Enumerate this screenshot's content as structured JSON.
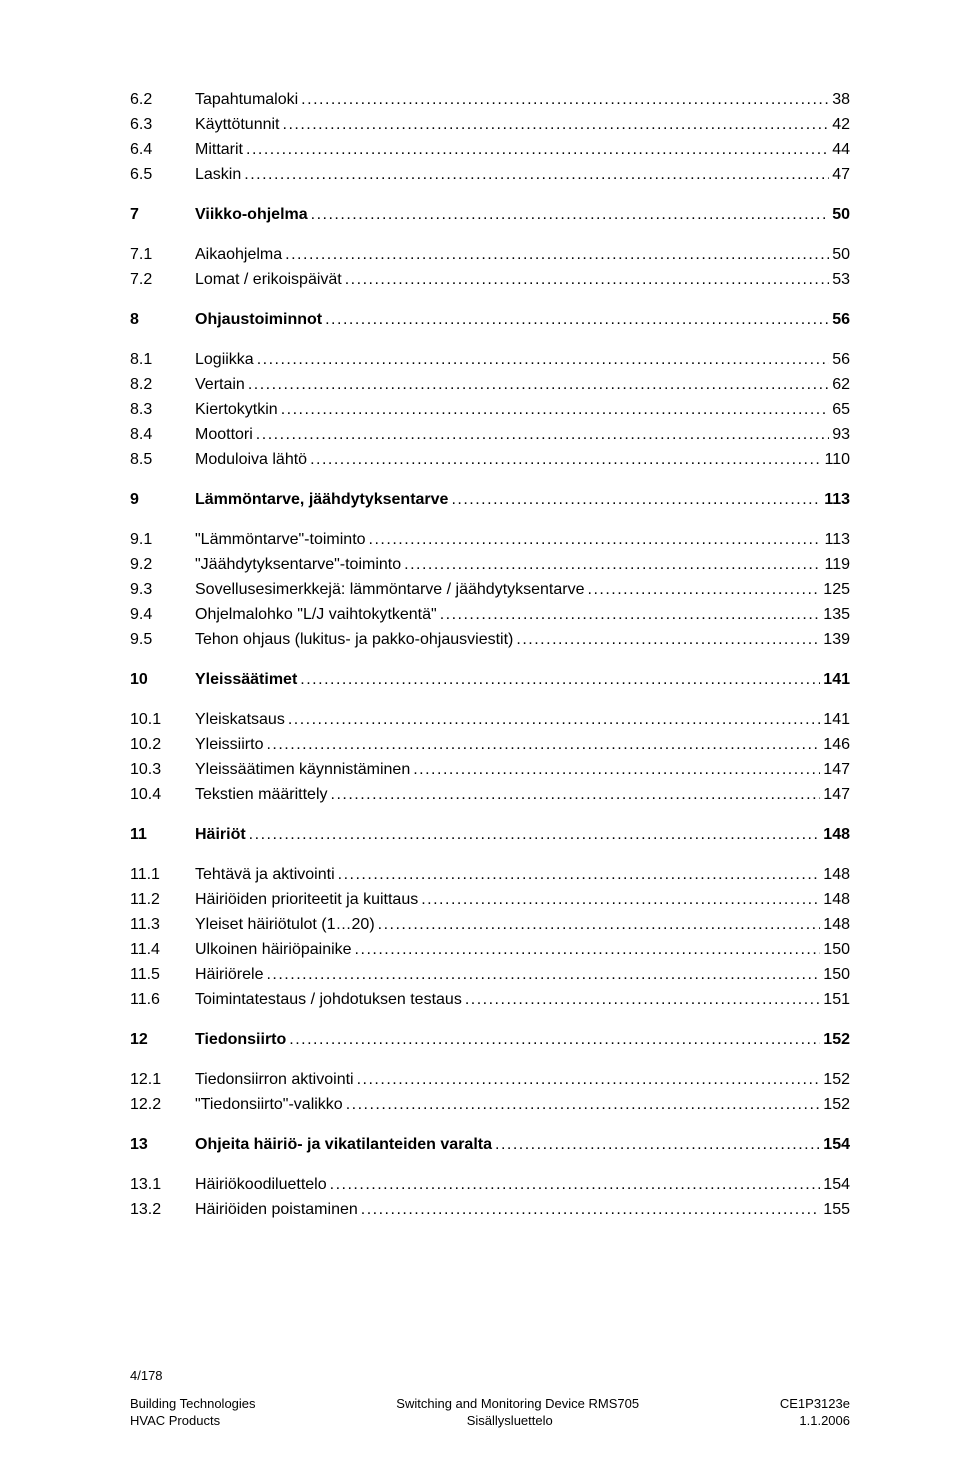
{
  "toc": [
    {
      "num": "6.2",
      "label": "Tapahtumaloki",
      "page": "38",
      "bold": false,
      "gap": false
    },
    {
      "num": "6.3",
      "label": "Käyttötunnit",
      "page": "42",
      "bold": false,
      "gap": false
    },
    {
      "num": "6.4",
      "label": "Mittarit",
      "page": "44",
      "bold": false,
      "gap": false
    },
    {
      "num": "6.5",
      "label": "Laskin",
      "page": "47",
      "bold": false,
      "gap": false
    },
    {
      "num": "7",
      "label": "Viikko-ohjelma",
      "page": "50",
      "bold": true,
      "gap": true
    },
    {
      "num": "7.1",
      "label": "Aikaohjelma",
      "page": "50",
      "bold": false,
      "gap": true
    },
    {
      "num": "7.2",
      "label": "Lomat / erikoispäivät",
      "page": "53",
      "bold": false,
      "gap": false
    },
    {
      "num": "8",
      "label": "Ohjaustoiminnot",
      "page": "56",
      "bold": true,
      "gap": true
    },
    {
      "num": "8.1",
      "label": "Logiikka",
      "page": "56",
      "bold": false,
      "gap": true
    },
    {
      "num": "8.2",
      "label": "Vertain",
      "page": "62",
      "bold": false,
      "gap": false
    },
    {
      "num": "8.3",
      "label": "Kiertokytkin",
      "page": "65",
      "bold": false,
      "gap": false
    },
    {
      "num": "8.4",
      "label": "Moottori",
      "page": "93",
      "bold": false,
      "gap": false
    },
    {
      "num": "8.5",
      "label": "Moduloiva lähtö",
      "page": "110",
      "bold": false,
      "gap": false
    },
    {
      "num": "9",
      "label": "Lämmöntarve, jäähdytyksentarve",
      "page": "113",
      "bold": true,
      "gap": true
    },
    {
      "num": "9.1",
      "label": "\"Lämmöntarve\"-toiminto",
      "page": "113",
      "bold": false,
      "gap": true
    },
    {
      "num": "9.2",
      "label": "\"Jäähdytyksentarve\"-toiminto",
      "page": "119",
      "bold": false,
      "gap": false
    },
    {
      "num": "9.3",
      "label": "Sovellusesimerkkejä: lämmöntarve / jäähdytyksentarve",
      "page": "125",
      "bold": false,
      "gap": false
    },
    {
      "num": "9.4",
      "label": "Ohjelmalohko \"L/J vaihtokytkentä\"",
      "page": "135",
      "bold": false,
      "gap": false
    },
    {
      "num": "9.5",
      "label": "Tehon ohjaus (lukitus- ja pakko-ohjausviestit)",
      "page": "139",
      "bold": false,
      "gap": false
    },
    {
      "num": "10",
      "label": "Yleissäätimet",
      "page": "141",
      "bold": true,
      "gap": true
    },
    {
      "num": "10.1",
      "label": "Yleiskatsaus",
      "page": "141",
      "bold": false,
      "gap": true
    },
    {
      "num": "10.2",
      "label": "Yleissiirto",
      "page": "146",
      "bold": false,
      "gap": false
    },
    {
      "num": "10.3",
      "label": "Yleissäätimen käynnistäminen",
      "page": "147",
      "bold": false,
      "gap": false
    },
    {
      "num": "10.4",
      "label": "Tekstien määrittely",
      "page": "147",
      "bold": false,
      "gap": false
    },
    {
      "num": "11",
      "label": "Häiriöt",
      "page": "148",
      "bold": true,
      "gap": true
    },
    {
      "num": "11.1",
      "label": "Tehtävä ja aktivointi",
      "page": "148",
      "bold": false,
      "gap": true
    },
    {
      "num": "11.2",
      "label": "Häiriöiden prioriteetit ja kuittaus",
      "page": "148",
      "bold": false,
      "gap": false
    },
    {
      "num": "11.3",
      "label": "Yleiset häiriötulot (1…20)",
      "page": "148",
      "bold": false,
      "gap": false
    },
    {
      "num": "11.4",
      "label": "Ulkoinen häiriöpainike",
      "page": "150",
      "bold": false,
      "gap": false
    },
    {
      "num": "11.5",
      "label": "Häiriörele",
      "page": "150",
      "bold": false,
      "gap": false
    },
    {
      "num": "11.6",
      "label": "Toimintatestaus / johdotuksen testaus",
      "page": "151",
      "bold": false,
      "gap": false
    },
    {
      "num": "12",
      "label": "Tiedonsiirto",
      "page": "152",
      "bold": true,
      "gap": true
    },
    {
      "num": "12.1",
      "label": "Tiedonsiirron aktivointi",
      "page": "152",
      "bold": false,
      "gap": true
    },
    {
      "num": "12.2",
      "label": "\"Tiedonsiirto\"-valikko",
      "page": "152",
      "bold": false,
      "gap": false
    },
    {
      "num": "13",
      "label": "Ohjeita häiriö- ja vikatilanteiden varalta",
      "page": "154",
      "bold": true,
      "gap": true
    },
    {
      "num": "13.1",
      "label": "Häiriökoodiluettelo",
      "page": "154",
      "bold": false,
      "gap": true
    },
    {
      "num": "13.2",
      "label": "Häiriöiden poistaminen",
      "page": "155",
      "bold": false,
      "gap": false
    }
  ],
  "footer": {
    "page_num": "4/178",
    "left1": "Building Technologies",
    "left2": "HVAC Products",
    "center1": "Switching and Monitoring Device RMS705",
    "center2": "Sisällysluettelo",
    "right1": "CE1P3123e",
    "right2": "1.1.2006"
  }
}
